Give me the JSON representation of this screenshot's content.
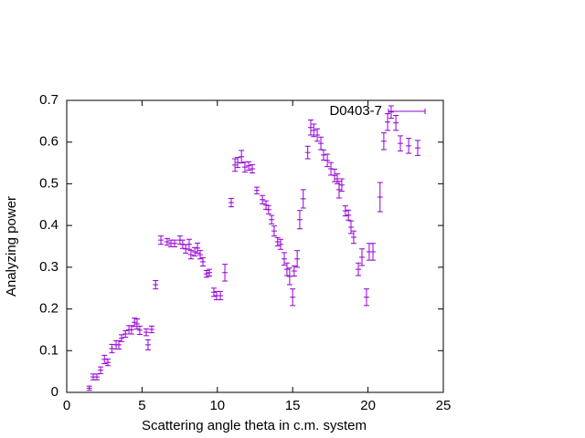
{
  "chart_data": {
    "type": "scatter",
    "xlabel": "Scattering angle theta in c.m. system",
    "ylabel": "Analyzing power",
    "xlim": [
      0,
      25
    ],
    "xticks": [
      0,
      5,
      10,
      15,
      20,
      25
    ],
    "ylim": [
      0,
      0.7
    ],
    "yticks": [
      0,
      0.1,
      0.2,
      0.3,
      0.4,
      0.5,
      0.6,
      0.7
    ],
    "legend": "top-right",
    "series": [
      {
        "name": "D0403-7",
        "color": "#9400d3",
        "x": [
          1.5,
          1.76,
          2.0,
          2.25,
          2.5,
          2.73,
          3.0,
          3.28,
          3.46,
          3.64,
          3.9,
          4.13,
          4.3,
          4.5,
          4.67,
          4.85,
          5.28,
          5.4,
          5.64,
          5.9,
          6.25,
          6.67,
          6.92,
          7.16,
          7.52,
          7.7,
          7.9,
          8.13,
          8.25,
          8.5,
          8.68,
          8.86,
          9.04,
          9.28,
          9.47,
          9.77,
          9.95,
          10.2,
          10.5,
          10.92,
          11.17,
          11.35,
          11.6,
          11.83,
          12.08,
          12.32,
          12.62,
          12.99,
          13.23,
          13.4,
          13.6,
          13.77,
          14.0,
          14.2,
          14.44,
          14.62,
          14.8,
          15.0,
          15.1,
          15.3,
          15.47,
          15.7,
          16.0,
          16.2,
          16.4,
          16.63,
          16.87,
          17.05,
          17.3,
          17.54,
          17.78,
          17.96,
          18.08,
          18.26,
          18.5,
          18.7,
          18.87,
          19.05,
          19.36,
          19.6,
          19.9,
          20.08,
          20.33,
          20.8,
          21.05,
          21.3,
          21.54,
          21.85,
          22.15,
          22.7,
          23.3
        ],
        "values": [
          0.01,
          0.037,
          0.037,
          0.053,
          0.079,
          0.072,
          0.105,
          0.114,
          0.114,
          0.13,
          0.14,
          0.15,
          0.15,
          0.168,
          0.164,
          0.149,
          0.144,
          0.114,
          0.151,
          0.258,
          0.365,
          0.361,
          0.357,
          0.357,
          0.365,
          0.355,
          0.344,
          0.355,
          0.33,
          0.337,
          0.346,
          0.33,
          0.313,
          0.284,
          0.287,
          0.24,
          0.232,
          0.232,
          0.287,
          0.455,
          0.545,
          0.551,
          0.565,
          0.54,
          0.543,
          0.536,
          0.484,
          0.462,
          0.449,
          0.438,
          0.414,
          0.387,
          0.361,
          0.355,
          0.32,
          0.295,
          0.278,
          0.228,
          0.291,
          0.32,
          0.414,
          0.464,
          0.575,
          0.635,
          0.628,
          0.617,
          0.597,
          0.569,
          0.556,
          0.536,
          0.52,
          0.512,
          0.486,
          0.497,
          0.435,
          0.425,
          0.396,
          0.372,
          0.295,
          0.324,
          0.228,
          0.337,
          0.337,
          0.468,
          0.602,
          0.648,
          0.672,
          0.646,
          0.597,
          0.591,
          0.586
        ],
        "errors": [
          0.005,
          0.007,
          0.007,
          0.008,
          0.01,
          0.008,
          0.01,
          0.01,
          0.01,
          0.008,
          0.008,
          0.01,
          0.01,
          0.01,
          0.012,
          0.01,
          0.008,
          0.012,
          0.008,
          0.01,
          0.01,
          0.008,
          0.008,
          0.008,
          0.01,
          0.01,
          0.01,
          0.012,
          0.01,
          0.01,
          0.012,
          0.01,
          0.01,
          0.008,
          0.008,
          0.01,
          0.01,
          0.01,
          0.02,
          0.01,
          0.015,
          0.012,
          0.015,
          0.012,
          0.01,
          0.01,
          0.008,
          0.01,
          0.01,
          0.01,
          0.01,
          0.012,
          0.01,
          0.012,
          0.015,
          0.015,
          0.02,
          0.02,
          0.012,
          0.02,
          0.022,
          0.022,
          0.015,
          0.018,
          0.015,
          0.015,
          0.015,
          0.012,
          0.015,
          0.015,
          0.015,
          0.012,
          0.02,
          0.015,
          0.012,
          0.012,
          0.015,
          0.015,
          0.015,
          0.02,
          0.02,
          0.02,
          0.02,
          0.035,
          0.02,
          0.02,
          0.015,
          0.018,
          0.018,
          0.018,
          0.018
        ]
      }
    ]
  }
}
